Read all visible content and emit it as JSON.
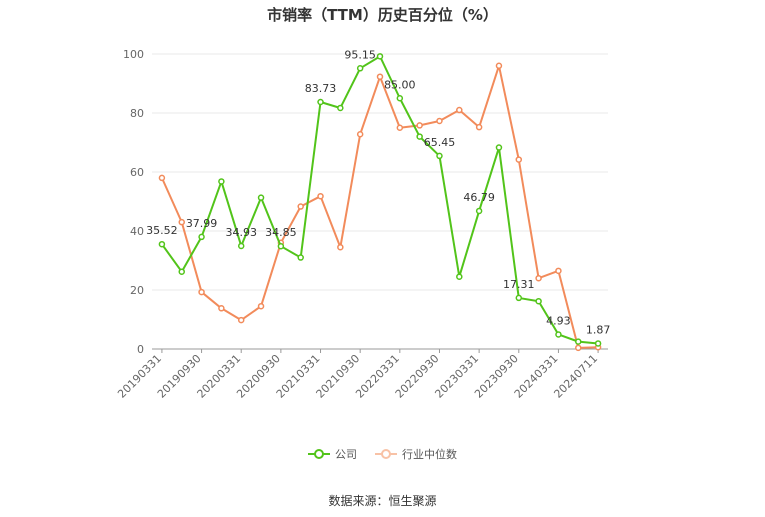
{
  "title": "市销率（TTM）历史百分位（%）",
  "source": "数据来源：恒生聚源",
  "colors": {
    "company": "#52c41a",
    "industry": "#f28b5b",
    "grid": "#e8e8e8",
    "axis": "#999999",
    "text": "#666666"
  },
  "chart_data": {
    "type": "line",
    "x_tick_labels": [
      "20190331",
      "20190930",
      "20200331",
      "20200930",
      "20210331",
      "20210930",
      "20220331",
      "20220930",
      "20230331",
      "20230930",
      "20240331",
      "20240711"
    ],
    "ylim": [
      0,
      100
    ],
    "y_ticks": [
      0,
      20,
      40,
      60,
      80,
      100
    ],
    "grid": true,
    "legend_position": "bottom",
    "series": [
      {
        "name": "公司",
        "color": "#52c41a",
        "values": [
          35.52,
          26.2,
          37.99,
          56.8,
          34.93,
          51.3,
          34.85,
          31.0,
          83.73,
          81.7,
          95.15,
          99.2,
          85.0,
          72.0,
          65.45,
          24.5,
          46.79,
          68.3,
          17.31,
          16.2,
          4.93,
          2.5,
          1.87
        ],
        "labels": [
          "35.52",
          "",
          "37.99",
          "",
          "34.93",
          "",
          "34.85",
          "",
          "83.73",
          "",
          "95.15",
          "",
          "85.00",
          "",
          "65.45",
          "",
          "46.79",
          "",
          "17.31",
          "",
          "4.93",
          "",
          "1.87"
        ]
      },
      {
        "name": "行业中位数",
        "color": "#f28b5b",
        "values": [
          58.0,
          43.0,
          19.3,
          13.8,
          9.8,
          14.5,
          36.0,
          48.3,
          51.8,
          34.5,
          72.8,
          92.3,
          75.0,
          75.8,
          77.3,
          81.0,
          75.2,
          96.0,
          64.2,
          24.0,
          26.5,
          0.4,
          0.6
        ]
      }
    ]
  }
}
